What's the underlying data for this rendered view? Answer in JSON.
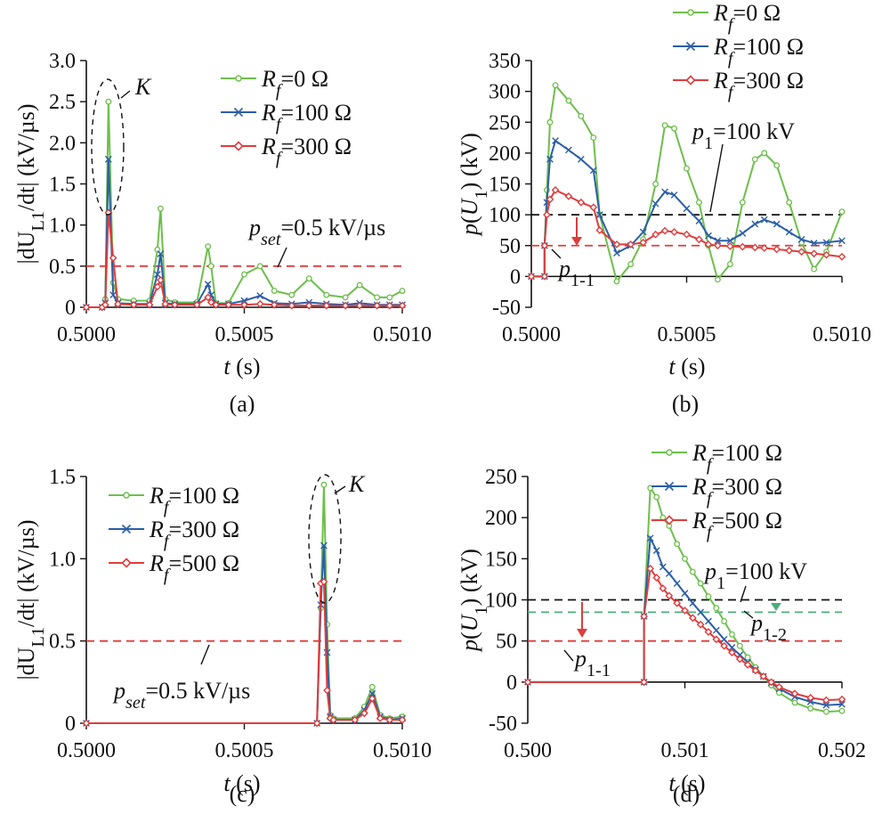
{
  "chart_data": [
    {
      "type": "line",
      "caption": "(a)",
      "xlabel": "t (s)",
      "ylabel": "|dU_L1/dt| (kV/µs)",
      "xlim": [
        0.5,
        0.501
      ],
      "ylim": [
        0,
        3.0
      ],
      "xticks": [
        "0.5000",
        "0.5005",
        "0.5010"
      ],
      "yticks": [
        "0",
        "0.5",
        "1.0",
        "1.5",
        "2.0",
        "2.5",
        "3.0"
      ],
      "legend_position": "top-right",
      "threshold": {
        "label": "p_set=0.5 kV/µs",
        "value": 0.5,
        "color": "#e03c3c"
      },
      "annotations": [
        {
          "label": "K",
          "note": "dashed ellipse around first peak"
        }
      ],
      "series": [
        {
          "name": "Rf=0 Ω",
          "color": "#6dbf4b",
          "marker": "circle",
          "x": [
            0.5,
            0.50005,
            0.50006,
            0.50007,
            0.500085,
            0.5001,
            0.50015,
            0.5002,
            0.500225,
            0.500235,
            0.50025,
            0.50028,
            0.50035,
            0.500385,
            0.500395,
            0.50041,
            0.50045,
            0.5005,
            0.50055,
            0.500595,
            0.50065,
            0.500705,
            0.50076,
            0.50082,
            0.500865,
            0.50092,
            0.50096,
            0.501
          ],
          "y": [
            0,
            0,
            0.1,
            2.5,
            0.3,
            0.1,
            0.08,
            0.08,
            0.7,
            1.2,
            0.1,
            0.06,
            0.06,
            0.74,
            0.5,
            0.05,
            0.05,
            0.4,
            0.5,
            0.2,
            0.15,
            0.35,
            0.15,
            0.12,
            0.27,
            0.12,
            0.12,
            0.2
          ]
        },
        {
          "name": "Rf=100 Ω",
          "color": "#2b5ea7",
          "marker": "x",
          "x": [
            0.5,
            0.50005,
            0.50006,
            0.50007,
            0.500085,
            0.5001,
            0.50015,
            0.5002,
            0.500225,
            0.500235,
            0.50025,
            0.50028,
            0.50035,
            0.500385,
            0.500395,
            0.50041,
            0.50045,
            0.5005,
            0.50055,
            0.500595,
            0.50065,
            0.500705,
            0.50076,
            0.50082,
            0.500865,
            0.50092,
            0.50096,
            0.501
          ],
          "y": [
            0,
            0,
            0.05,
            1.8,
            0.15,
            0.05,
            0.04,
            0.04,
            0.4,
            0.65,
            0.05,
            0.04,
            0.04,
            0.28,
            0.15,
            0.04,
            0.04,
            0.08,
            0.14,
            0.05,
            0.04,
            0.06,
            0.04,
            0.03,
            0.05,
            0.03,
            0.03,
            0.03
          ]
        },
        {
          "name": "Rf=300 Ω",
          "color": "#e03c3c",
          "marker": "diamond",
          "x": [
            0.5,
            0.50005,
            0.50006,
            0.50007,
            0.500085,
            0.5001,
            0.50015,
            0.5002,
            0.500225,
            0.500235,
            0.50025,
            0.50028,
            0.50035,
            0.500385,
            0.500395,
            0.50041,
            0.50045,
            0.5005,
            0.50055,
            0.500595,
            0.50065,
            0.500705,
            0.50076,
            0.50082,
            0.500865,
            0.50092,
            0.50096,
            0.501
          ],
          "y": [
            0,
            0,
            0.03,
            1.15,
            0.6,
            0.04,
            0.03,
            0.03,
            0.25,
            0.33,
            0.04,
            0.03,
            0.03,
            0.12,
            0.06,
            0.03,
            0.03,
            0.03,
            0.04,
            0.03,
            0.02,
            0.02,
            0.02,
            0.02,
            0.02,
            0.02,
            0.02,
            0.02
          ]
        }
      ]
    },
    {
      "type": "line",
      "caption": "(b)",
      "xlabel": "t (s)",
      "ylabel": "p(U_1) (kV)",
      "xlim": [
        0.5,
        0.501
      ],
      "ylim": [
        -50,
        350
      ],
      "xticks": [
        "0.5000",
        "0.5005",
        "0.5010"
      ],
      "yticks": [
        "-50",
        "0",
        "50",
        "100",
        "150",
        "200",
        "250",
        "300",
        "350"
      ],
      "legend_position": "top-right",
      "thresholds": [
        {
          "label": "p_1=100 kV",
          "value": 100,
          "color": "#111111"
        },
        {
          "label": "p_1-1",
          "value": 50,
          "color": "#e03c3c"
        }
      ],
      "series": [
        {
          "name": "Rf=0 Ω",
          "color": "#6dbf4b",
          "marker": "circle",
          "x": [
            0.5,
            0.5000425,
            0.5000425,
            0.50005,
            0.50006,
            0.5000775,
            0.50012,
            0.50016,
            0.5002,
            0.50022,
            0.500275,
            0.50032,
            0.50036,
            0.5004,
            0.50043,
            0.50046,
            0.5005,
            0.50054,
            0.50057,
            0.5006,
            0.50064,
            0.50068,
            0.50072,
            0.50075,
            0.50079,
            0.50083,
            0.50087,
            0.50091,
            0.50095,
            0.501
          ],
          "y": [
            0,
            0,
            50,
            140,
            250,
            310,
            285,
            260,
            225,
            100,
            -8,
            20,
            60,
            150,
            245,
            240,
            175,
            120,
            50,
            -5,
            20,
            120,
            190,
            200,
            180,
            120,
            55,
            12,
            40,
            105
          ]
        },
        {
          "name": "Rf=100 Ω",
          "color": "#2b5ea7",
          "marker": "x",
          "x": [
            0.5,
            0.5000425,
            0.5000425,
            0.50005,
            0.50006,
            0.5000775,
            0.50012,
            0.50016,
            0.5002,
            0.50022,
            0.500275,
            0.50032,
            0.50036,
            0.5004,
            0.50043,
            0.50046,
            0.5005,
            0.50054,
            0.50057,
            0.5006,
            0.50064,
            0.50068,
            0.50072,
            0.50075,
            0.50079,
            0.50083,
            0.50087,
            0.50091,
            0.50095,
            0.501
          ],
          "y": [
            0,
            0,
            50,
            120,
            190,
            220,
            205,
            190,
            172,
            100,
            38,
            50,
            72,
            118,
            137,
            132,
            110,
            90,
            66,
            58,
            58,
            70,
            85,
            92,
            85,
            72,
            60,
            54,
            55,
            58
          ]
        },
        {
          "name": "Rf=300 Ω",
          "color": "#e03c3c",
          "marker": "diamond",
          "x": [
            0.5,
            0.5000425,
            0.5000425,
            0.50005,
            0.50006,
            0.5000775,
            0.50012,
            0.50016,
            0.5002,
            0.50022,
            0.500275,
            0.50032,
            0.50036,
            0.5004,
            0.50043,
            0.50046,
            0.5005,
            0.50054,
            0.50057,
            0.5006,
            0.50064,
            0.50068,
            0.50072,
            0.50075,
            0.50079,
            0.50083,
            0.50087,
            0.50091,
            0.50095,
            0.501
          ],
          "y": [
            0,
            0,
            50,
            100,
            125,
            140,
            130,
            120,
            112,
            75,
            52,
            52,
            55,
            68,
            74,
            72,
            68,
            60,
            52,
            50,
            49,
            48,
            47,
            46,
            44,
            42,
            40,
            37,
            35,
            32
          ]
        }
      ]
    },
    {
      "type": "line",
      "caption": "(c)",
      "xlabel": "t (s)",
      "ylabel": "|dU_L1/dt| (kV/µs)",
      "xlim": [
        0.5,
        0.501
      ],
      "ylim": [
        0,
        1.5
      ],
      "xticks": [
        "0.5000",
        "0.5005",
        "0.5010"
      ],
      "yticks": [
        "0",
        "0.5",
        "1.0",
        "1.5"
      ],
      "legend_position": "top-left",
      "threshold": {
        "label": "p_set=0.5 kV/µs",
        "value": 0.5,
        "color": "#e03c3c"
      },
      "annotations": [
        {
          "label": "K",
          "note": "dashed ellipse around main peak"
        }
      ],
      "series": [
        {
          "name": "Rf=100 Ω",
          "color": "#6dbf4b",
          "marker": "circle",
          "x": [
            0.5,
            0.50073,
            0.500742,
            0.500752,
            0.500762,
            0.500772,
            0.500782,
            0.50085,
            0.50088,
            0.500905,
            0.50093,
            0.50096,
            0.501
          ],
          "y": [
            0,
            0,
            0.7,
            1.45,
            0.6,
            0.05,
            0.03,
            0.03,
            0.1,
            0.22,
            0.05,
            0.03,
            0.04
          ]
        },
        {
          "name": "Rf=300 Ω",
          "color": "#2b5ea7",
          "marker": "x",
          "x": [
            0.5,
            0.50073,
            0.500742,
            0.500752,
            0.500762,
            0.500772,
            0.500782,
            0.50085,
            0.50088,
            0.500905,
            0.50093,
            0.50096,
            0.501
          ],
          "y": [
            0,
            0,
            0.72,
            1.08,
            0.43,
            0.04,
            0.02,
            0.02,
            0.08,
            0.18,
            0.04,
            0.02,
            0.03
          ]
        },
        {
          "name": "Rf=500 Ω",
          "color": "#e03c3c",
          "marker": "diamond",
          "x": [
            0.5,
            0.50073,
            0.500742,
            0.500752,
            0.500762,
            0.500772,
            0.500782,
            0.50085,
            0.50088,
            0.500905,
            0.50093,
            0.50096,
            0.501
          ],
          "y": [
            0,
            0,
            0.85,
            0.86,
            0.2,
            0.03,
            0.02,
            0.02,
            0.06,
            0.15,
            0.03,
            0.02,
            0.02
          ]
        }
      ]
    },
    {
      "type": "line",
      "caption": "(d)",
      "xlabel": "t (s)",
      "ylabel": "p(U_1) (kV)",
      "xlim": [
        0.5,
        0.502
      ],
      "ylim": [
        -50,
        250
      ],
      "xticks": [
        "0.500",
        "0.501",
        "0.502"
      ],
      "yticks": [
        "-50",
        "0",
        "50",
        "100",
        "150",
        "200",
        "250"
      ],
      "legend_position": "top-right",
      "thresholds": [
        {
          "label": "p_1=100 kV",
          "value": 100,
          "color": "#111111"
        },
        {
          "label": "p_1-2",
          "value": 85,
          "color": "#4caf7a"
        },
        {
          "label": "p_1-1",
          "value": 50,
          "color": "#e03c3c"
        }
      ],
      "series": [
        {
          "name": "Rf=100 Ω",
          "color": "#6dbf4b",
          "marker": "circle",
          "x": [
            0.5,
            0.50074,
            0.50074,
            0.50078,
            0.50082,
            0.50086,
            0.5009,
            0.50095,
            0.501,
            0.50105,
            0.5011,
            0.50115,
            0.5012,
            0.50125,
            0.5013,
            0.50135,
            0.5014,
            0.50145,
            0.5015,
            0.50155,
            0.5016,
            0.5017,
            0.5018,
            0.5019,
            0.502
          ],
          "y": [
            0,
            0,
            80,
            236,
            225,
            200,
            190,
            168,
            150,
            134,
            120,
            104,
            90,
            74,
            58,
            44,
            30,
            18,
            7,
            -4,
            -13,
            -25,
            -32,
            -36,
            -35
          ]
        },
        {
          "name": "Rf=300 Ω",
          "color": "#2b5ea7",
          "marker": "x",
          "x": [
            0.5,
            0.50074,
            0.50074,
            0.50078,
            0.50082,
            0.50086,
            0.5009,
            0.50095,
            0.501,
            0.50105,
            0.5011,
            0.50115,
            0.5012,
            0.50125,
            0.5013,
            0.50135,
            0.5014,
            0.50145,
            0.5015,
            0.50155,
            0.5016,
            0.5017,
            0.5018,
            0.5019,
            0.502
          ],
          "y": [
            0,
            0,
            80,
            175,
            160,
            140,
            132,
            120,
            108,
            96,
            85,
            74,
            63,
            52,
            42,
            33,
            24,
            15,
            7,
            -1,
            -8,
            -18,
            -24,
            -28,
            -27
          ]
        },
        {
          "name": "Rf=500 Ω",
          "color": "#e03c3c",
          "marker": "diamond",
          "x": [
            0.5,
            0.50074,
            0.50074,
            0.50078,
            0.50082,
            0.50086,
            0.5009,
            0.50095,
            0.501,
            0.50105,
            0.5011,
            0.50115,
            0.5012,
            0.50125,
            0.5013,
            0.50135,
            0.5014,
            0.50145,
            0.5015,
            0.50155,
            0.5016,
            0.5017,
            0.5018,
            0.5019,
            0.502
          ],
          "y": [
            0,
            0,
            80,
            138,
            127,
            114,
            105,
            96,
            87,
            78,
            70,
            61,
            52,
            44,
            36,
            28,
            21,
            14,
            7,
            0,
            -6,
            -14,
            -19,
            -22,
            -21
          ]
        }
      ]
    }
  ]
}
